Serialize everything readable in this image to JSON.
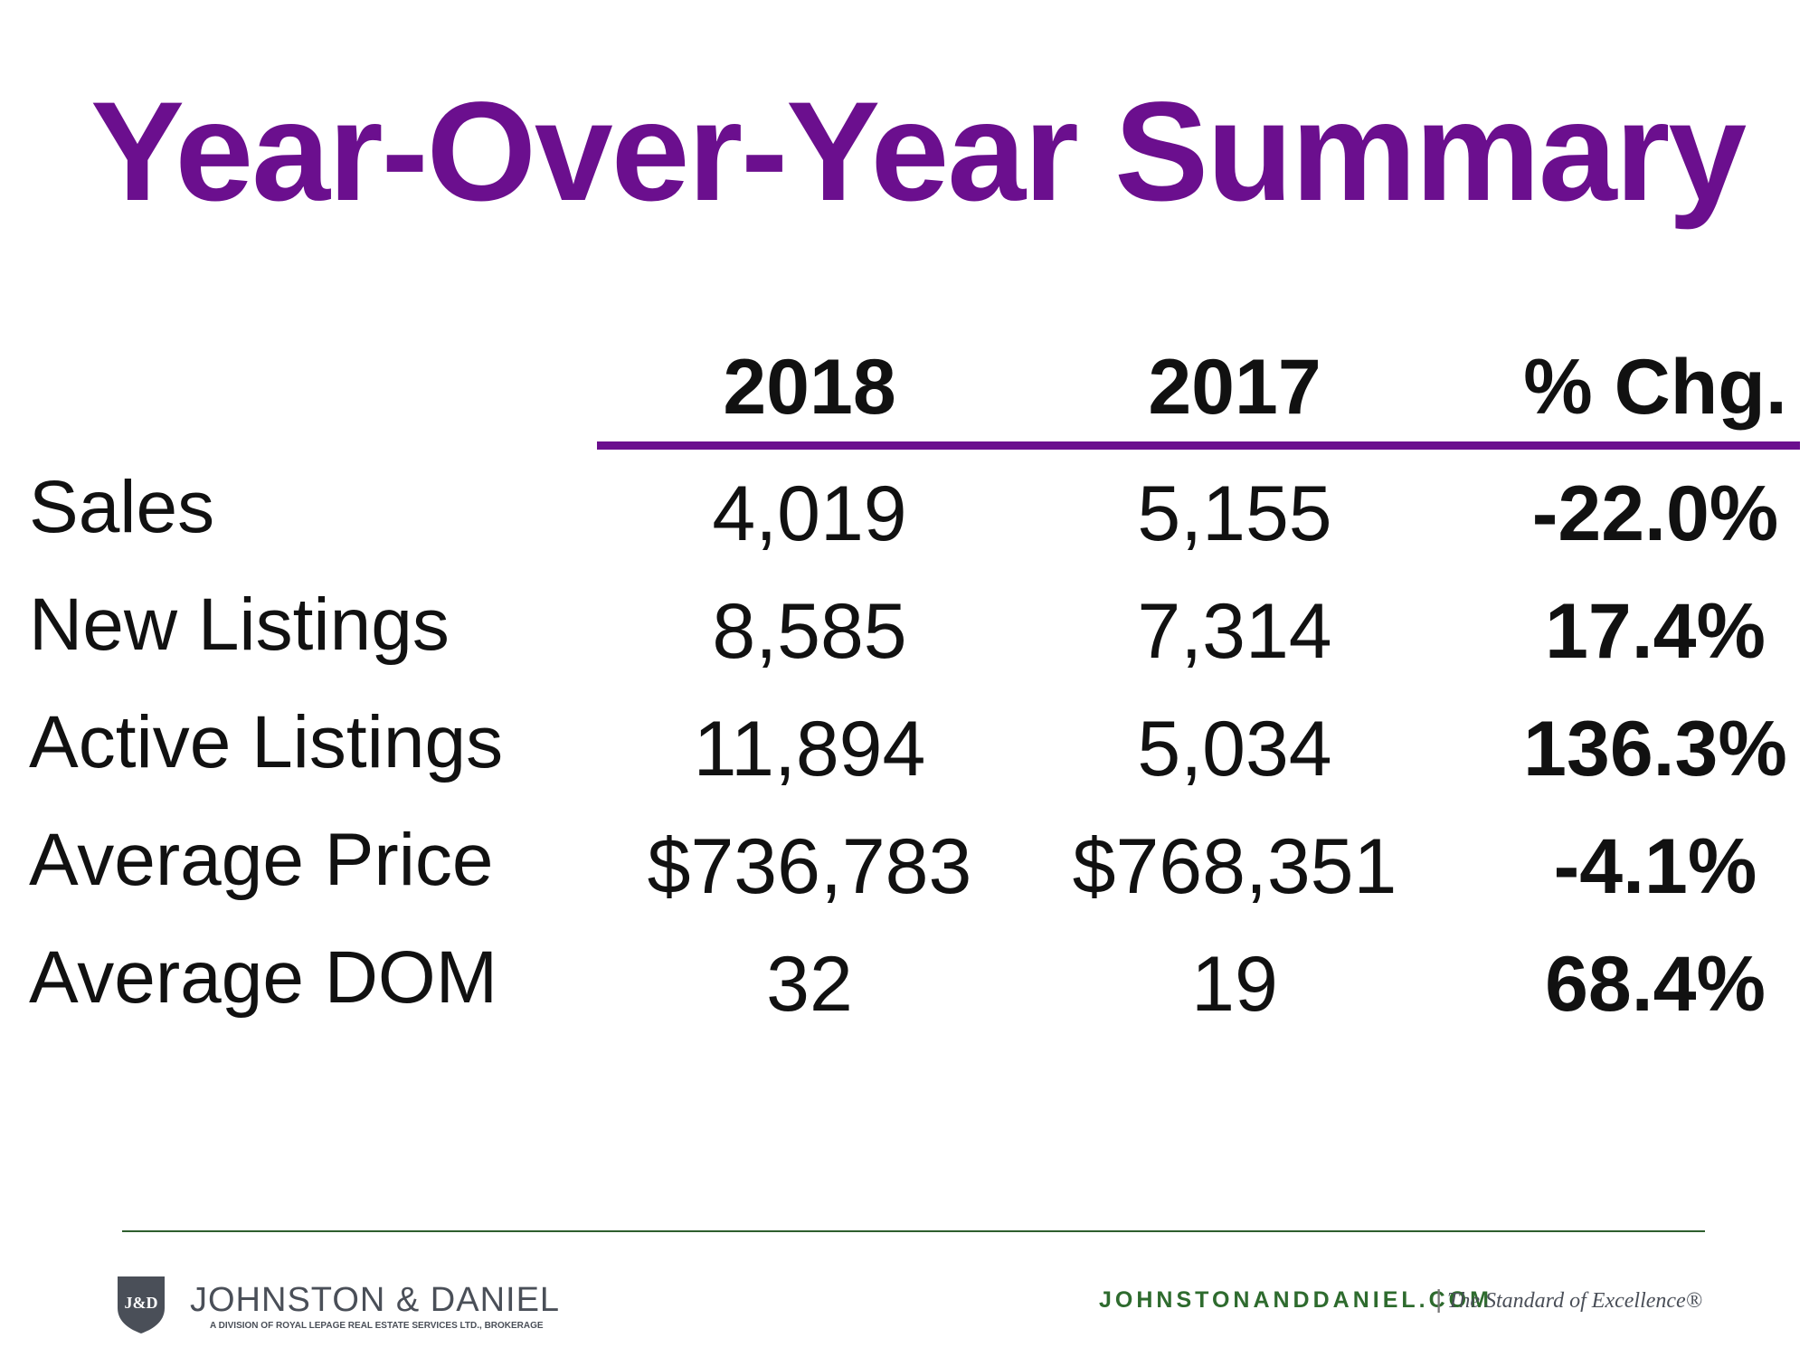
{
  "title": "Year-Over-Year Summary",
  "table": {
    "columns": [
      "2018",
      "2017",
      "% Chg."
    ],
    "rows": [
      {
        "label": "Sales",
        "y2018": "4,019",
        "y2017": "5,155",
        "chg": "-22.0%"
      },
      {
        "label": "New Listings",
        "y2018": "8,585",
        "y2017": "7,314",
        "chg": "17.4%"
      },
      {
        "label": "Active Listings",
        "y2018": "11,894",
        "y2017": "5,034",
        "chg": "136.3%"
      },
      {
        "label": "Average Price",
        "y2018": "$736,783",
        "y2017": "$768,351",
        "chg": "-4.1%"
      },
      {
        "label": "Average DOM",
        "y2018": "32",
        "y2017": "19",
        "chg": "68.4%"
      }
    ]
  },
  "footer": {
    "logo_initials": "J&D",
    "brand_name": "JOHNSTON & DANIEL",
    "brand_subtitle": "A DIVISION OF ROYAL LEPAGE REAL ESTATE SERVICES LTD., BROKERAGE",
    "website": "JOHNSTONANDDANIEL.COM",
    "separator": "|",
    "tagline": "The Standard of Excellence®"
  },
  "colors": {
    "title": "#6b0f8e",
    "rule": "#6b0f8e",
    "footer_rule": "#2e5e2e",
    "website": "#2e6b2e"
  }
}
